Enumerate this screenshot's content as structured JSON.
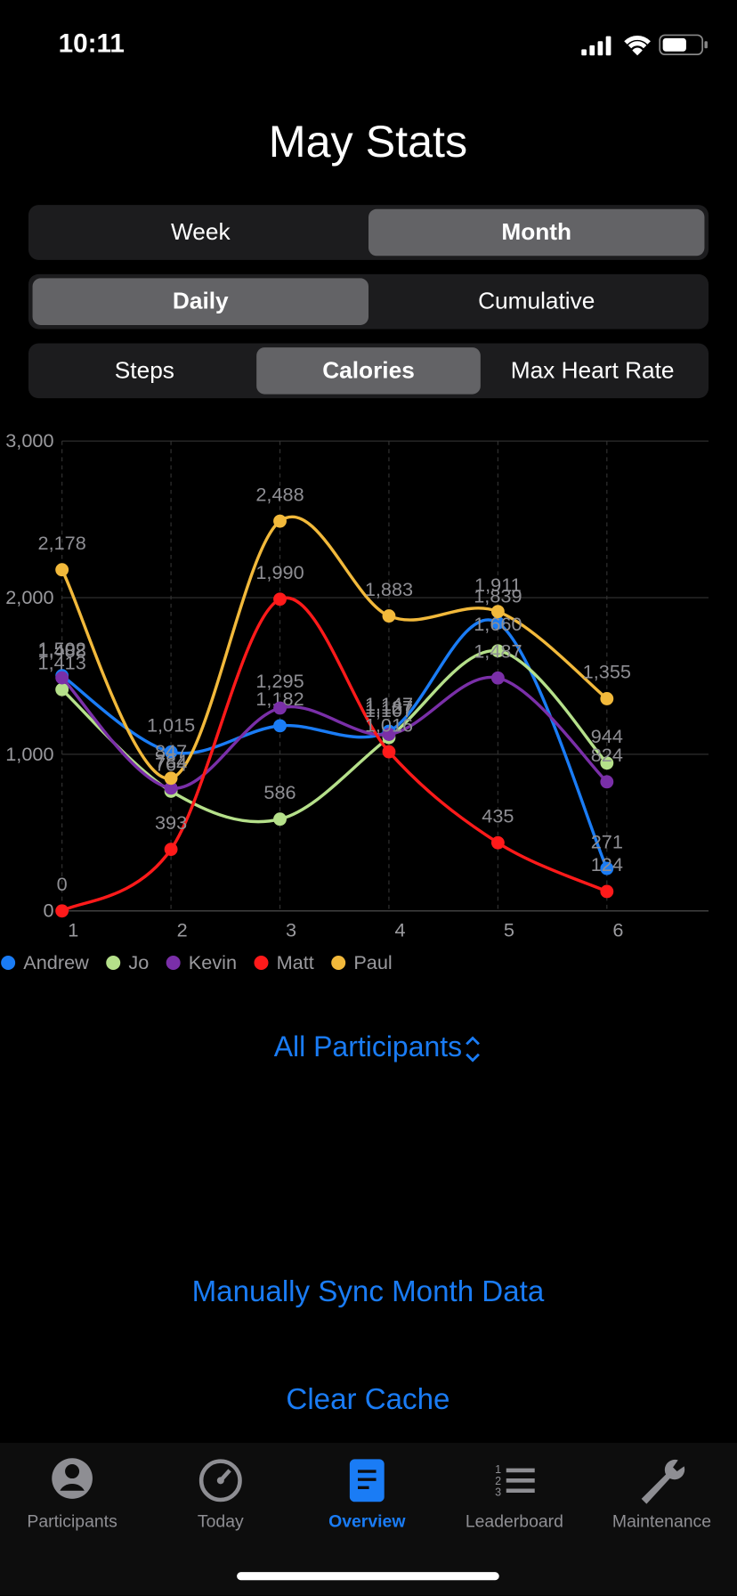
{
  "status_bar": {
    "time": "10:11"
  },
  "header": {
    "title": "May Stats"
  },
  "controls": [
    {
      "options": [
        "Week",
        "Month"
      ],
      "selected": 1
    },
    {
      "options": [
        "Daily",
        "Cumulative"
      ],
      "selected": 0
    },
    {
      "options": [
        "Steps",
        "Calories",
        "Max Heart Rate"
      ],
      "selected": 1
    }
  ],
  "chart_data": {
    "type": "line",
    "categories": [
      "1",
      "2",
      "3",
      "4",
      "5",
      "6"
    ],
    "ylim": [
      0,
      3000
    ],
    "yticks": [
      0,
      {
        "value": 1000,
        "label": "1,000"
      },
      {
        "value": 2000,
        "label": "2,000"
      },
      {
        "value": 3000,
        "label": "3,000"
      }
    ],
    "grid": true,
    "legend": "bottom-left",
    "series": [
      {
        "name": "Andrew",
        "color": "#1a7cf5",
        "values": [
          1502,
          1015,
          1182,
          1147,
          1839,
          271
        ],
        "value_labels": [
          "1,502",
          "1,015",
          "1,182",
          "1,147",
          "1,839",
          "271"
        ]
      },
      {
        "name": "Jo",
        "color": "#b5e08a",
        "values": [
          1413,
          764,
          586,
          1107,
          1660,
          944
        ],
        "value_labels": [
          "1,413",
          "764",
          "586",
          "1,107",
          "1,660",
          "944"
        ]
      },
      {
        "name": "Kevin",
        "color": "#7a2fa8",
        "values": [
          1488,
          784,
          1295,
          1127,
          1487,
          824
        ],
        "value_labels": [
          "1,488",
          "784",
          "1,295",
          "1,127",
          "1,487",
          "824"
        ]
      },
      {
        "name": "Matt",
        "color": "#ff1a1a",
        "values": [
          0,
          393,
          1990,
          1016,
          435,
          124
        ],
        "value_labels": [
          "0",
          "393",
          "1,990",
          "1,016",
          "435",
          "124"
        ]
      },
      {
        "name": "Paul",
        "color": "#f2b93b",
        "values": [
          2178,
          847,
          2488,
          1883,
          1911,
          1355
        ],
        "value_labels": [
          "2,178",
          "847",
          "2,488",
          "1,883",
          "1,911",
          "1,355"
        ]
      }
    ]
  },
  "participant_picker": "All Participants",
  "actions": [
    "Manually Sync Month Data",
    "Clear Cache"
  ],
  "tabs": {
    "items": [
      "Participants",
      "Today",
      "Overview",
      "Leaderboard",
      "Maintenance"
    ],
    "selected": 2
  }
}
